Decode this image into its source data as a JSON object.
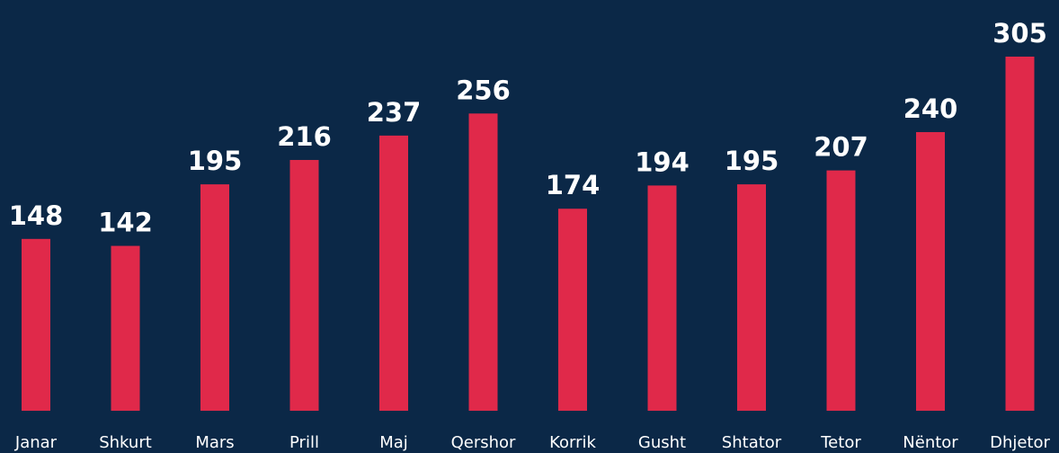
{
  "chart_data": {
    "type": "bar",
    "categories": [
      "Janar",
      "Shkurt",
      "Mars",
      "Prill",
      "Maj",
      "Qershor",
      "Korrik",
      "Gusht",
      "Shtator",
      "Tetor",
      "Nëntor",
      "Dhjetor"
    ],
    "values": [
      148,
      142,
      195,
      216,
      237,
      256,
      174,
      194,
      195,
      207,
      240,
      305
    ],
    "color": "#e0294a"
  }
}
